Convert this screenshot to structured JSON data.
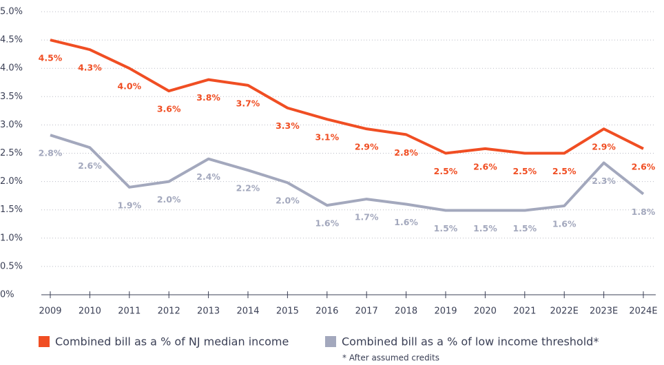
{
  "chart_data": {
    "type": "line",
    "categories": [
      "2009",
      "2010",
      "2011",
      "2012",
      "2013",
      "2014",
      "2015",
      "2016",
      "2017",
      "2018",
      "2019",
      "2020",
      "2021",
      "2022E",
      "2023E",
      "2024E"
    ],
    "series": [
      {
        "name": "Combined bill as a % of NJ median income",
        "color": "#f04e23",
        "values": [
          4.5,
          4.33,
          4.0,
          3.6,
          3.8,
          3.7,
          3.3,
          3.1,
          2.93,
          2.83,
          2.5,
          2.58,
          2.5,
          2.5,
          2.93,
          2.58
        ],
        "value_labels": [
          "4.5%",
          "4.3%",
          "4.0%",
          "3.6%",
          "3.8%",
          "3.7%",
          "3.3%",
          "3.1%",
          "2.9%",
          "2.8%",
          "2.5%",
          "2.6%",
          "2.5%",
          "2.5%",
          "2.9%",
          "2.6%"
        ]
      },
      {
        "name": "Combined bill as a % of low income threshold*",
        "color": "#a3a8bd",
        "values": [
          2.82,
          2.6,
          1.9,
          2.0,
          2.4,
          2.2,
          1.98,
          1.58,
          1.69,
          1.6,
          1.49,
          1.49,
          1.49,
          1.57,
          2.33,
          1.78
        ],
        "value_labels": [
          "2.8%",
          "2.6%",
          "1.9%",
          "2.0%",
          "2.4%",
          "2.2%",
          "2.0%",
          "1.6%",
          "1.7%",
          "1.6%",
          "1.5%",
          "1.5%",
          "1.5%",
          "1.6%",
          "2.3%",
          "1.8%"
        ]
      }
    ],
    "ylim": [
      0,
      5
    ],
    "yticks": [
      {
        "value": 0,
        "label": "0%"
      },
      {
        "value": 0.5,
        "label": "0.5%"
      },
      {
        "value": 1,
        "label": "1.0%"
      },
      {
        "value": 1.5,
        "label": "1.5%"
      },
      {
        "value": 2,
        "label": "2.0%"
      },
      {
        "value": 2.5,
        "label": "2.5%"
      },
      {
        "value": 3,
        "label": "3.0%"
      },
      {
        "value": 3.5,
        "label": "3.5%"
      },
      {
        "value": 4,
        "label": "4.0%"
      },
      {
        "value": 4.5,
        "label": "4.5%"
      },
      {
        "value": 5,
        "label": "5.0%"
      }
    ],
    "grid": true,
    "note": "* After assumed credits"
  }
}
